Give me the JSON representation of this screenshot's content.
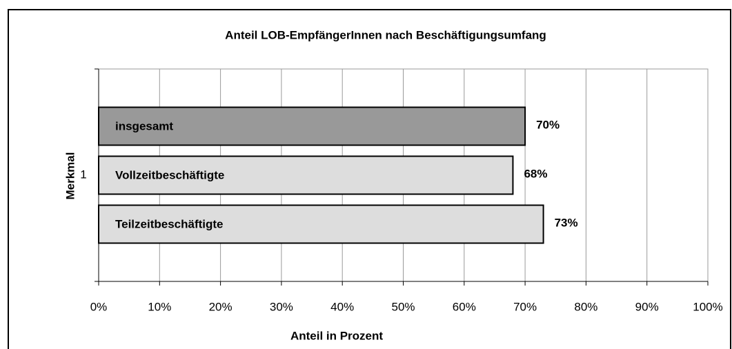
{
  "chart_data": {
    "type": "barh",
    "title": "Anteil LOB-EmpfängerInnen nach Beschäftigungsumfang",
    "x_label": "Anteil in Prozent",
    "y_label": "Merkmal",
    "categories": [
      "1"
    ],
    "series": [
      {
        "name": "insgesamt",
        "color": "#999999",
        "values": [
          70
        ],
        "value_labels": [
          "70%"
        ]
      },
      {
        "name": "Vollzeitbeschäftigte",
        "color": "#dddddd",
        "values": [
          68
        ],
        "value_labels": [
          "68%"
        ]
      },
      {
        "name": "Teilzeitbeschäftigte",
        "color": "#dddddd",
        "values": [
          73
        ],
        "value_labels": [
          "73%"
        ]
      }
    ],
    "xlim": [
      0,
      100
    ],
    "xticks": [
      {
        "value": 0,
        "label": "0%"
      },
      {
        "value": 10,
        "label": "10%"
      },
      {
        "value": 20,
        "label": "20%"
      },
      {
        "value": 30,
        "label": "30%"
      },
      {
        "value": 40,
        "label": "40%"
      },
      {
        "value": 50,
        "label": "50%"
      },
      {
        "value": 60,
        "label": "60%"
      },
      {
        "value": 70,
        "label": "70%"
      },
      {
        "value": 80,
        "label": "80%"
      },
      {
        "value": 90,
        "label": "90%"
      },
      {
        "value": 100,
        "label": "100%"
      }
    ],
    "grid": true
  }
}
